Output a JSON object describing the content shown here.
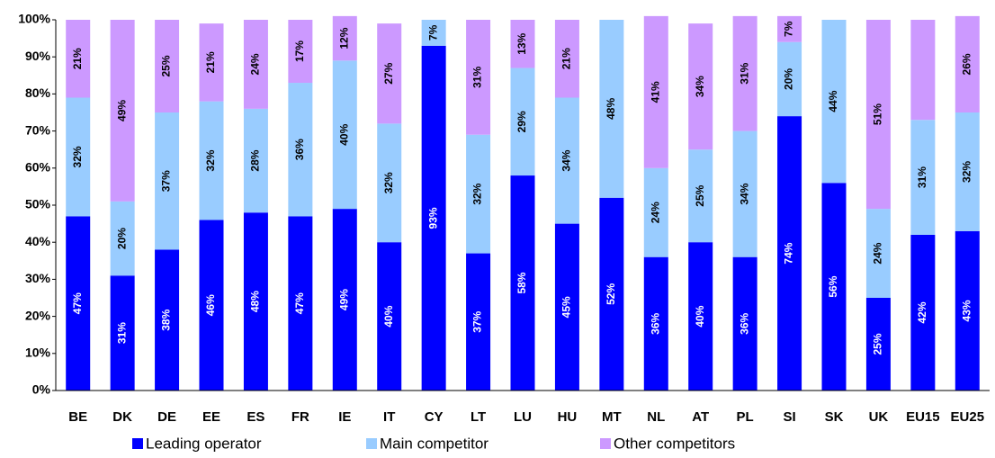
{
  "chart_data": {
    "type": "stacked_bar",
    "categories": [
      "BE",
      "DK",
      "DE",
      "EE",
      "ES",
      "FR",
      "IE",
      "IT",
      "CY",
      "LT",
      "LU",
      "HU",
      "MT",
      "NL",
      "AT",
      "PL",
      "SI",
      "SK",
      "UK",
      "EU15",
      "EU25"
    ],
    "series": [
      {
        "name": "Leading operator",
        "color": "#0000ff",
        "values": [
          47,
          31,
          38,
          46,
          48,
          47,
          49,
          40,
          93,
          37,
          58,
          45,
          52,
          36,
          40,
          36,
          74,
          56,
          25,
          42,
          43
        ],
        "value_labels": [
          "47%",
          "31%",
          "38%",
          "46%",
          "48%",
          "47%",
          "49%",
          "40%",
          "93%",
          "37%",
          "58%",
          "45%",
          "52%",
          "36%",
          "40%",
          "36%",
          "74%",
          "56%",
          "25%",
          "42%",
          "43%"
        ]
      },
      {
        "name": "Main competitor",
        "color": "#99ccff",
        "values": [
          32,
          20,
          37,
          32,
          28,
          36,
          40,
          32,
          7,
          32,
          29,
          34,
          48,
          24,
          25,
          34,
          20,
          44,
          24,
          31,
          32
        ],
        "value_labels": [
          "32%",
          "20%",
          "37%",
          "32%",
          "28%",
          "36%",
          "40%",
          "32%",
          "7%",
          "32%",
          "29%",
          "34%",
          "48%",
          "24%",
          "25%",
          "34%",
          "20%",
          "44%",
          "24%",
          "31%",
          "32%"
        ]
      },
      {
        "name": "Other competitors",
        "color": "#cc99ff",
        "values": [
          21,
          49,
          25,
          21,
          24,
          17,
          12,
          27,
          null,
          31,
          13,
          21,
          null,
          41,
          34,
          31,
          7,
          null,
          51,
          27,
          26
        ],
        "value_labels": [
          "21%",
          "49%",
          "25%",
          "21%",
          "24%",
          "17%",
          "12%",
          "27%",
          null,
          "31%",
          "13%",
          "21%",
          null,
          "41%",
          "34%",
          "31%",
          "7%",
          null,
          "51%",
          null,
          "26%"
        ]
      }
    ],
    "ylim": [
      0,
      100
    ],
    "yticks": [
      {
        "value": 0,
        "label": "0%"
      },
      {
        "value": 10,
        "label": "10%"
      },
      {
        "value": 20,
        "label": "20%"
      },
      {
        "value": 30,
        "label": "30%"
      },
      {
        "value": 40,
        "label": "40%"
      },
      {
        "value": 50,
        "label": "50%"
      },
      {
        "value": 60,
        "label": "60%"
      },
      {
        "value": 70,
        "label": "70%"
      },
      {
        "value": 80,
        "label": "80%"
      },
      {
        "value": 90,
        "label": "90%"
      },
      {
        "value": 100,
        "label": "100%"
      }
    ],
    "grid": false,
    "legend": "bottom"
  }
}
